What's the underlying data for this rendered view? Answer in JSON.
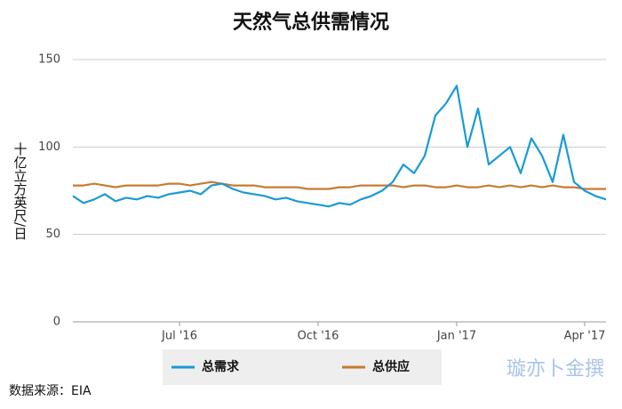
{
  "chart_data": {
    "type": "line",
    "title": "天然气总供需情况",
    "y_label": "十亿立方英尺/日",
    "source": "数据来源：EIA",
    "watermark": "璇亦卜金撰",
    "categories": [
      null,
      null,
      null,
      null,
      null,
      null,
      null,
      null,
      null,
      null,
      "Jul '16",
      null,
      null,
      null,
      null,
      null,
      null,
      null,
      null,
      null,
      null,
      null,
      null,
      "Oct '16",
      null,
      null,
      null,
      null,
      null,
      null,
      null,
      null,
      null,
      null,
      null,
      null,
      "Jan '17",
      null,
      null,
      null,
      null,
      null,
      null,
      null,
      null,
      null,
      null,
      null,
      "Apr '17",
      null,
      null
    ],
    "series": [
      {
        "name": "总需求",
        "color": "#1a9ad6",
        "values": [
          72,
          68,
          70,
          73,
          69,
          71,
          70,
          72,
          71,
          73,
          74,
          75,
          73,
          78,
          79,
          76,
          74,
          73,
          72,
          70,
          71,
          69,
          68,
          67,
          66,
          68,
          67,
          70,
          72,
          75,
          80,
          90,
          85,
          95,
          118,
          125,
          135,
          100,
          122,
          90,
          95,
          100,
          85,
          105,
          95,
          80,
          107,
          80,
          75,
          72,
          70
        ]
      },
      {
        "name": "总供应",
        "color": "#c77b30",
        "values": [
          78,
          78,
          79,
          78,
          77,
          78,
          78,
          78,
          78,
          79,
          79,
          78,
          79,
          80,
          79,
          78,
          78,
          78,
          77,
          77,
          77,
          77,
          76,
          76,
          76,
          77,
          77,
          78,
          78,
          78,
          78,
          77,
          78,
          78,
          77,
          77,
          78,
          77,
          77,
          78,
          77,
          78,
          77,
          78,
          77,
          78,
          77,
          77,
          76,
          76,
          76
        ]
      }
    ],
    "ylim": [
      0,
      150
    ],
    "yticks": [
      0,
      50,
      100,
      150
    ],
    "grid": true,
    "legend": "bottom"
  }
}
